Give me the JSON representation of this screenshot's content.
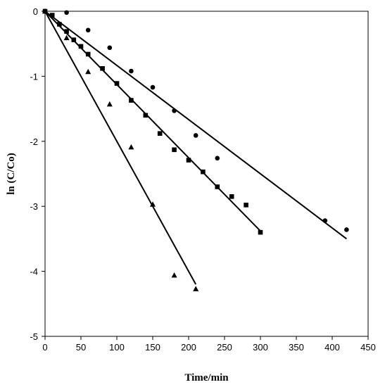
{
  "chart_data": {
    "type": "scatter",
    "title": "",
    "xlabel": "Time/min",
    "ylabel": "ln (C/Co)",
    "xlim": [
      0,
      450
    ],
    "ylim": [
      -5,
      0
    ],
    "xticks": [
      0,
      50,
      100,
      150,
      200,
      250,
      300,
      350,
      400,
      450
    ],
    "yticks": [
      0,
      -1,
      -2,
      -3,
      -4,
      -5
    ],
    "grid": false,
    "legend": "none",
    "series": [
      {
        "marker": "circle",
        "color": "#000000",
        "points": [
          [
            0,
            0
          ],
          [
            30,
            -0.02
          ],
          [
            60,
            -0.29
          ],
          [
            90,
            -0.56
          ],
          [
            120,
            -0.92
          ],
          [
            150,
            -1.17
          ],
          [
            180,
            -1.53
          ],
          [
            210,
            -1.91
          ],
          [
            240,
            -2.26
          ],
          [
            390,
            -3.22
          ],
          [
            420,
            -3.36
          ]
        ],
        "fit": [
          [
            0,
            0
          ],
          [
            420,
            -3.5
          ]
        ]
      },
      {
        "marker": "square",
        "color": "#000000",
        "points": [
          [
            0,
            0
          ],
          [
            10,
            -0.06
          ],
          [
            20,
            -0.2
          ],
          [
            30,
            -0.31
          ],
          [
            40,
            -0.44
          ],
          [
            50,
            -0.54
          ],
          [
            60,
            -0.66
          ],
          [
            80,
            -0.88
          ],
          [
            100,
            -1.11
          ],
          [
            120,
            -1.37
          ],
          [
            140,
            -1.6
          ],
          [
            160,
            -1.88
          ],
          [
            180,
            -2.13
          ],
          [
            200,
            -2.29
          ],
          [
            220,
            -2.47
          ],
          [
            240,
            -2.7
          ],
          [
            260,
            -2.85
          ],
          [
            280,
            -2.98
          ],
          [
            300,
            -3.4
          ]
        ],
        "fit": [
          [
            0,
            0
          ],
          [
            300,
            -3.38
          ]
        ]
      },
      {
        "marker": "triangle",
        "color": "#000000",
        "points": [
          [
            0,
            0
          ],
          [
            30,
            -0.41
          ],
          [
            60,
            -0.93
          ],
          [
            90,
            -1.43
          ],
          [
            120,
            -2.09
          ],
          [
            150,
            -2.97
          ],
          [
            180,
            -4.06
          ],
          [
            210,
            -4.27
          ]
        ],
        "fit": [
          [
            0,
            0
          ],
          [
            210,
            -4.2
          ]
        ]
      }
    ]
  }
}
